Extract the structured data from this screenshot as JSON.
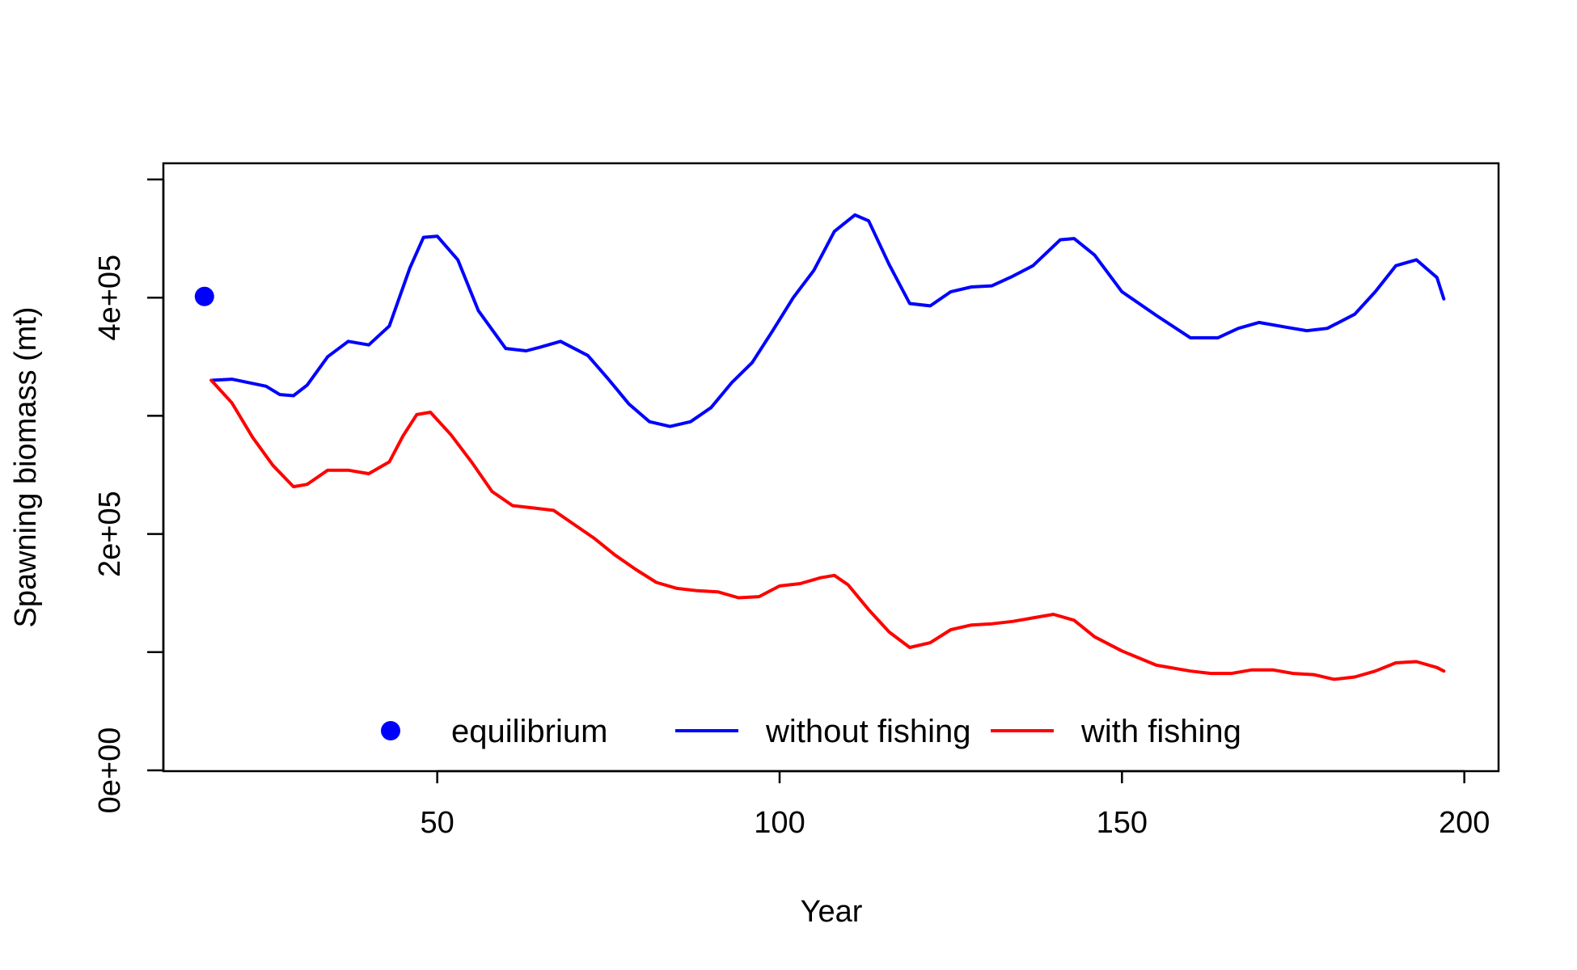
{
  "chart_data": {
    "type": "line",
    "title": "",
    "xlabel": "Year",
    "ylabel": "Spawning biomass (mt)",
    "xlim": [
      10,
      205
    ],
    "ylim": [
      0,
      500000
    ],
    "x_ticks": [
      50,
      100,
      150,
      200
    ],
    "x_tick_labels": [
      "50",
      "100",
      "150",
      "200"
    ],
    "y_ticks": [
      0,
      100000,
      200000,
      300000,
      400000,
      500000
    ],
    "y_tick_labels": [
      "0e+00",
      "",
      "2e+05",
      "",
      "4e+05",
      ""
    ],
    "grid": false,
    "legend_position": "bottom",
    "legend": [
      {
        "label": "equilibrium",
        "symbol": "point",
        "color": "#0000ff"
      },
      {
        "label": "without fishing",
        "symbol": "line",
        "color": "#0000ff"
      },
      {
        "label": "with fishing",
        "symbol": "line",
        "color": "#ff0000"
      }
    ],
    "equilibrium": {
      "x": 16,
      "y": 401000,
      "color": "#0000ff"
    },
    "series": [
      {
        "color": "#0000ff",
        "x": [
          17,
          20,
          25,
          27,
          29,
          31,
          34,
          37,
          40,
          43,
          46,
          48,
          50,
          53,
          56,
          60,
          63,
          65,
          68,
          72,
          75,
          78,
          81,
          84,
          87,
          90,
          93,
          96,
          99,
          102,
          105,
          108,
          111,
          113,
          116,
          119,
          122,
          125,
          128,
          131,
          134,
          137,
          141,
          143,
          146,
          150,
          155,
          160,
          164,
          167,
          170,
          174,
          177,
          180,
          184,
          187,
          190,
          193,
          196,
          197
        ],
        "values": [
          330000,
          331000,
          325000,
          318000,
          317000,
          326000,
          350000,
          363000,
          360000,
          376000,
          425000,
          451000,
          452000,
          432000,
          389000,
          357000,
          355000,
          358000,
          363000,
          351000,
          331000,
          310000,
          295000,
          291000,
          295000,
          307000,
          328000,
          345000,
          372000,
          400000,
          423000,
          456000,
          470000,
          465000,
          428000,
          395000,
          393000,
          405000,
          409000,
          410000,
          418000,
          427000,
          449000,
          450000,
          436000,
          405000,
          385000,
          366000,
          366000,
          374000,
          379000,
          375000,
          372000,
          374000,
          386000,
          405000,
          427000,
          432000,
          417000,
          399000
        ]
      },
      {
        "color": "#ff0000",
        "x": [
          17,
          20,
          23,
          26,
          29,
          31,
          34,
          37,
          40,
          43,
          45,
          47,
          49,
          52,
          55,
          58,
          61,
          64,
          67,
          70,
          73,
          76,
          79,
          82,
          85,
          88,
          91,
          94,
          97,
          100,
          103,
          106,
          108,
          110,
          113,
          116,
          119,
          122,
          125,
          128,
          131,
          134,
          137,
          140,
          143,
          146,
          150,
          155,
          160,
          163,
          166,
          169,
          172,
          175,
          178,
          181,
          184,
          187,
          190,
          193,
          196,
          197
        ],
        "values": [
          330000,
          311000,
          282000,
          258000,
          240000,
          242000,
          254000,
          254000,
          251000,
          261000,
          283000,
          301000,
          303000,
          284000,
          261000,
          236000,
          224000,
          222000,
          220000,
          208000,
          196000,
          182000,
          170000,
          159000,
          154000,
          152000,
          151000,
          146000,
          147000,
          156000,
          158000,
          163000,
          165000,
          157000,
          136000,
          117000,
          104000,
          108000,
          119000,
          123000,
          124000,
          126000,
          129000,
          132000,
          127000,
          113000,
          101000,
          89000,
          84000,
          82000,
          82000,
          85000,
          85000,
          82000,
          81000,
          77000,
          79000,
          84000,
          91000,
          92000,
          87000,
          84000
        ]
      }
    ]
  }
}
